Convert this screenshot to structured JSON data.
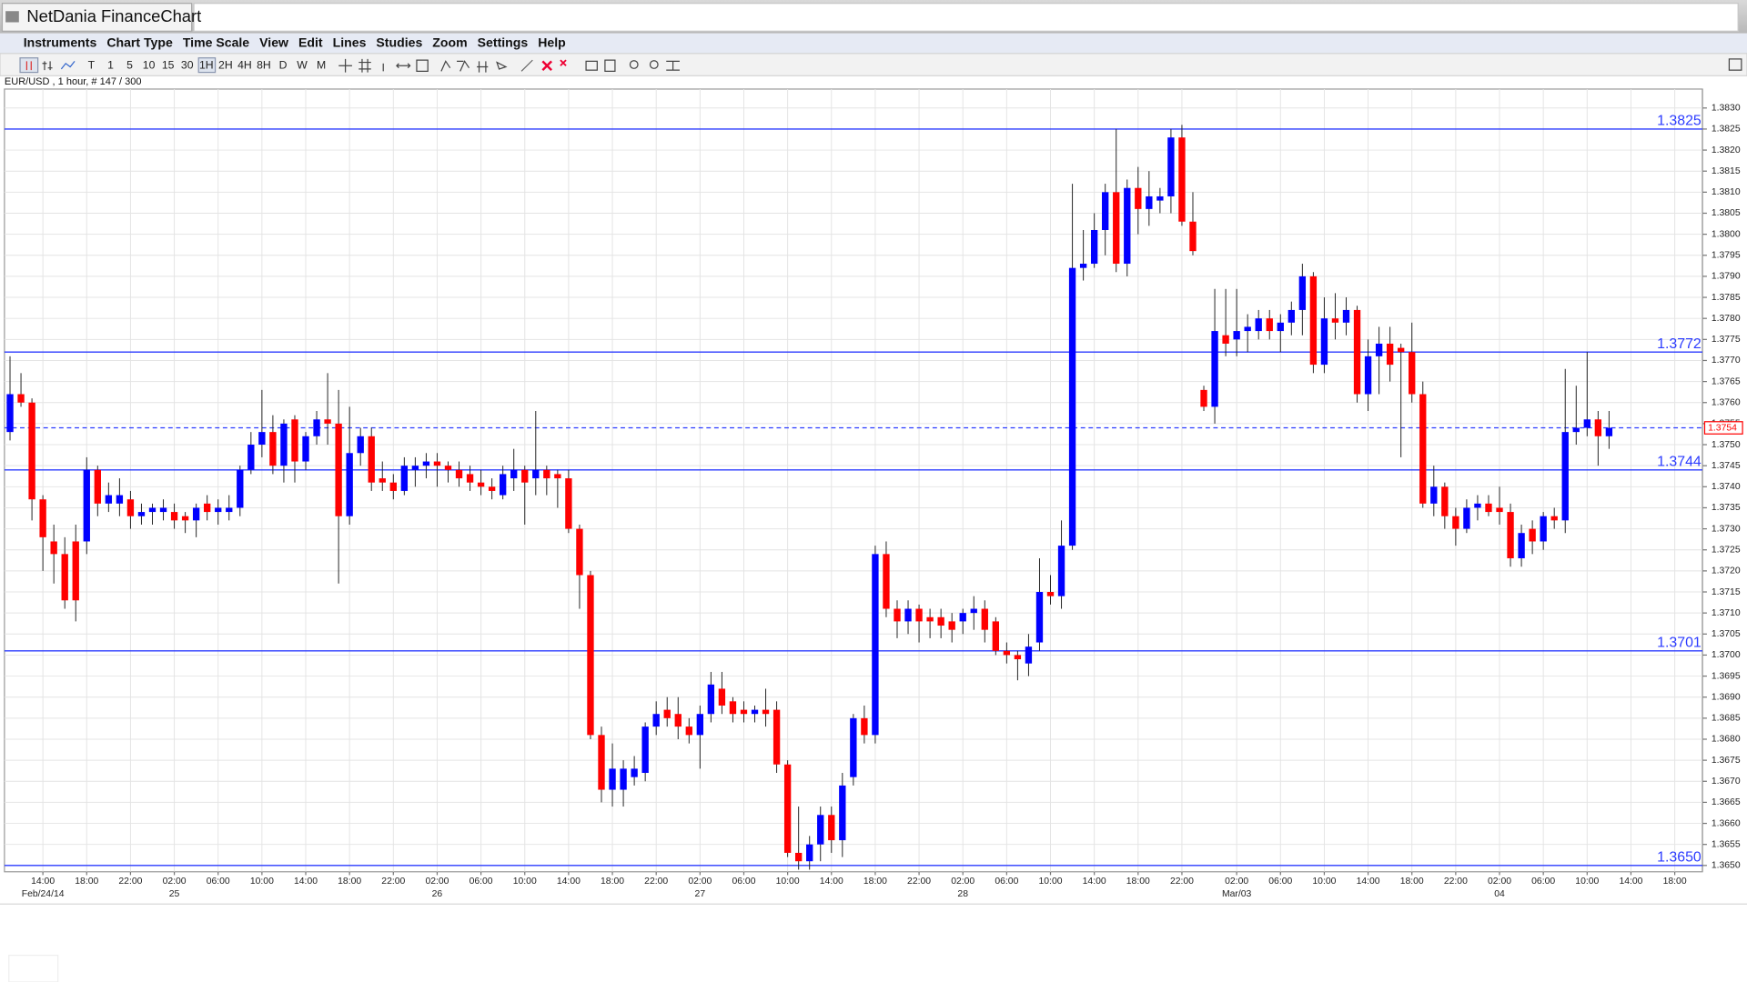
{
  "window": {
    "title": "NetDania FinanceChart",
    "menus": [
      "Instruments",
      "Chart Type",
      "Time Scale",
      "View",
      "Edit",
      "Lines",
      "Studies",
      "Zoom",
      "Settings",
      "Help"
    ],
    "toolbar": [
      "T",
      "1",
      "5",
      "10",
      "15",
      "30",
      "1H",
      "2H",
      "4H",
      "8H",
      "D",
      "W",
      "M"
    ]
  },
  "chart_data": {
    "type": "candlestick",
    "title": "EUR/USD , 1 hour, # 147 / 300",
    "up_color": "#0000ff",
    "down_color": "#ff0000",
    "level_color": "#2b3bff",
    "grid": true,
    "categories": [
      null,
      null,
      null,
      "14:00",
      null,
      null,
      null,
      "18:00",
      null,
      null,
      null,
      "22:00",
      null,
      null,
      null,
      "02:00",
      null,
      null,
      null,
      "06:00",
      null,
      null,
      null,
      "10:00",
      null,
      null,
      null,
      "14:00",
      null,
      null,
      null,
      "18:00",
      null,
      null,
      null,
      "22:00",
      null,
      null,
      null,
      "02:00",
      null,
      null,
      null,
      "06:00",
      null,
      null,
      null,
      "10:00",
      null,
      null,
      null,
      "14:00",
      null,
      null,
      null,
      "18:00",
      null,
      null,
      null,
      "22:00",
      null,
      null,
      null,
      "02:00",
      null,
      null,
      null,
      "06:00",
      null,
      null,
      null,
      "10:00",
      null,
      null,
      null,
      "14:00",
      null,
      null,
      null,
      "18:00",
      null,
      null,
      null,
      "22:00",
      null,
      null,
      null,
      "02:00",
      null,
      null,
      null,
      "06:00",
      null,
      null,
      null,
      "10:00",
      null,
      null,
      null,
      "14:00",
      null,
      null,
      null,
      "18:00",
      null,
      null,
      null,
      "22:00",
      null,
      null,
      null,
      null,
      "02:00",
      null,
      null,
      null,
      "06:00",
      null,
      null,
      null,
      "10:00",
      null,
      null,
      null,
      "14:00",
      null,
      null,
      null,
      "18:00",
      null,
      null,
      null,
      "22:00",
      null,
      null,
      null,
      "02:00",
      null,
      null,
      null,
      "06:00",
      null,
      null,
      null,
      "10:00",
      null,
      null,
      null,
      "14:00",
      null,
      null,
      null,
      "18:00"
    ],
    "date_labels": [
      null,
      null,
      null,
      "Feb/24/14",
      null,
      null,
      null,
      null,
      null,
      null,
      null,
      null,
      null,
      null,
      null,
      "25",
      null,
      null,
      null,
      null,
      null,
      null,
      null,
      null,
      null,
      null,
      null,
      null,
      null,
      null,
      null,
      null,
      null,
      null,
      null,
      null,
      null,
      null,
      null,
      "26",
      null,
      null,
      null,
      null,
      null,
      null,
      null,
      null,
      null,
      null,
      null,
      null,
      null,
      null,
      null,
      null,
      null,
      null,
      null,
      null,
      null,
      null,
      null,
      "27",
      null,
      null,
      null,
      null,
      null,
      null,
      null,
      null,
      null,
      null,
      null,
      null,
      null,
      null,
      null,
      null,
      null,
      null,
      null,
      null,
      null,
      null,
      null,
      "28",
      null,
      null,
      null,
      null,
      null,
      null,
      null,
      null,
      null,
      null,
      null,
      null,
      null,
      null,
      null,
      null,
      null,
      null,
      null,
      null,
      null,
      null,
      null,
      null,
      "Mar/03",
      null,
      null,
      null,
      null,
      null,
      null,
      null,
      null,
      null,
      null,
      null,
      null,
      null,
      null,
      null,
      null,
      null,
      null,
      null,
      null,
      null,
      null,
      null,
      "04",
      null,
      null,
      null,
      null,
      null,
      null,
      null,
      null,
      null,
      null,
      null,
      null,
      null,
      null,
      null,
      null
    ],
    "open": [
      1.3753,
      1.3762,
      1.376,
      1.3737,
      1.3727,
      1.3724,
      1.3727,
      1.3727,
      1.3744,
      1.3736,
      1.3736,
      1.3737,
      1.3733,
      1.3734,
      1.3734,
      1.3734,
      1.3733,
      1.3732,
      1.3736,
      1.3734,
      1.3734,
      1.3735,
      1.3744,
      1.375,
      1.3753,
      1.3745,
      1.3756,
      1.3746,
      1.3752,
      1.3756,
      1.3755,
      1.3733,
      1.3748,
      1.3752,
      1.3742,
      1.3741,
      1.3739,
      1.3744,
      1.3745,
      1.3746,
      1.3745,
      1.3744,
      1.3743,
      1.3741,
      1.374,
      1.3738,
      1.3742,
      1.3744,
      1.3742,
      1.3744,
      1.3743,
      1.3742,
      1.373,
      1.3719,
      1.3681,
      1.3668,
      1.3668,
      1.3671,
      1.3672,
      1.3683,
      1.3687,
      1.3686,
      1.3683,
      1.3681,
      1.3686,
      1.3692,
      1.3689,
      1.3687,
      1.3686,
      1.3687,
      1.3687,
      1.3674,
      1.3653,
      1.3651,
      1.3655,
      1.3662,
      1.3656,
      1.3671,
      1.3685,
      1.3681,
      1.3724,
      1.3711,
      1.3708,
      1.3711,
      1.3709,
      1.3709,
      1.3708,
      1.3708,
      1.371,
      1.3711,
      1.3708,
      1.3701,
      1.37,
      1.3698,
      1.3703,
      1.3715,
      1.3714,
      1.3726,
      1.3792,
      1.3793,
      1.3801,
      1.381,
      1.3793,
      1.3811,
      1.3806,
      1.3808,
      1.3809,
      1.3823,
      1.3803,
      1.3763,
      1.3759,
      1.3776,
      1.3775,
      1.3777,
      1.3777,
      1.378,
      1.3777,
      1.3779,
      1.3782,
      1.379,
      1.3769,
      1.378,
      1.3779,
      1.3782,
      1.3762,
      1.3771,
      1.3774,
      1.3773,
      1.3772,
      1.3762,
      1.3736,
      1.374,
      1.3733,
      1.373,
      1.3735,
      1.3736,
      1.3735,
      1.3734,
      1.3723,
      1.373,
      1.3727,
      1.3733,
      1.3732,
      1.3753,
      1.3754,
      1.3756,
      1.3752,
      null,
      null,
      null,
      null,
      null,
      null
    ],
    "high": [
      1.3771,
      1.3767,
      1.3761,
      1.3738,
      1.3731,
      1.3728,
      1.3731,
      1.3747,
      1.3745,
      1.3741,
      1.3742,
      1.3739,
      1.3736,
      1.3736,
      1.3737,
      1.3736,
      1.3734,
      1.3736,
      1.3738,
      1.3737,
      1.3738,
      1.3745,
      1.3753,
      1.3763,
      1.3757,
      1.3756,
      1.3757,
      1.3753,
      1.3758,
      1.3767,
      1.3763,
      1.3759,
      1.3754,
      1.3754,
      1.3746,
      1.3743,
      1.3747,
      1.3747,
      1.3748,
      1.3748,
      1.3746,
      1.3746,
      1.3745,
      1.3744,
      1.3742,
      1.3745,
      1.3749,
      1.3745,
      1.3758,
      1.3745,
      1.3744,
      1.3744,
      1.3731,
      1.372,
      1.3683,
      1.3679,
      1.3675,
      1.3676,
      1.3684,
      1.3689,
      1.369,
      1.369,
      1.3685,
      1.3688,
      1.3696,
      1.3696,
      1.369,
      1.3689,
      1.3688,
      1.3692,
      1.3689,
      1.3675,
      1.3664,
      1.3657,
      1.3664,
      1.3664,
      1.3672,
      1.3686,
      1.3688,
      1.3726,
      1.3727,
      1.3713,
      1.3713,
      1.3712,
      1.3711,
      1.3711,
      1.371,
      1.3711,
      1.3714,
      1.3713,
      1.3709,
      1.3703,
      1.3701,
      1.3705,
      1.3723,
      1.3719,
      1.3732,
      1.3812,
      1.3801,
      1.3805,
      1.3812,
      1.3825,
      1.3813,
      1.3816,
      1.3815,
      1.3811,
      1.3825,
      1.3826,
      1.381,
      1.3764,
      1.3787,
      1.3787,
      1.3787,
      1.3781,
      1.3782,
      1.3782,
      1.3781,
      1.3784,
      1.3793,
      1.3791,
      1.3785,
      1.3786,
      1.3785,
      1.3783,
      1.3775,
      1.3778,
      1.3778,
      1.3774,
      1.3779,
      1.3765,
      1.3745,
      1.3741,
      1.3735,
      1.3737,
      1.3738,
      1.3738,
      1.374,
      1.3736,
      1.3731,
      1.3732,
      1.3734,
      1.3735,
      1.3768,
      1.3764,
      1.3772,
      1.3758,
      1.3758,
      null,
      null,
      null,
      null,
      null,
      null
    ],
    "low": [
      1.3751,
      1.3759,
      1.3732,
      1.372,
      1.3717,
      1.3711,
      1.3708,
      1.3724,
      1.3733,
      1.3734,
      1.3733,
      1.373,
      1.3731,
      1.3731,
      1.3732,
      1.373,
      1.3729,
      1.3728,
      1.3732,
      1.3731,
      1.3732,
      1.3733,
      1.3743,
      1.3747,
      1.3743,
      1.3741,
      1.3741,
      1.3744,
      1.375,
      1.375,
      1.3717,
      1.3731,
      1.3745,
      1.3739,
      1.3739,
      1.3737,
      1.3738,
      1.374,
      1.3742,
      1.374,
      1.3741,
      1.374,
      1.3739,
      1.3738,
      1.3737,
      1.3737,
      1.3739,
      1.3731,
      1.3738,
      1.3738,
      1.3735,
      1.3729,
      1.3711,
      1.368,
      1.3665,
      1.3664,
      1.3664,
      1.3669,
      1.367,
      1.3681,
      1.3683,
      1.368,
      1.3679,
      1.3673,
      1.3684,
      1.3686,
      1.3684,
      1.3684,
      1.3684,
      1.3683,
      1.3672,
      1.3652,
      1.3649,
      1.3649,
      1.3651,
      1.3653,
      1.3652,
      1.3669,
      1.3679,
      1.3679,
      1.3709,
      1.3704,
      1.3705,
      1.3703,
      1.3704,
      1.3704,
      1.3703,
      1.3705,
      1.3706,
      1.3703,
      1.37,
      1.3698,
      1.3694,
      1.3695,
      1.3701,
      1.3712,
      1.3711,
      1.3725,
      1.3789,
      1.3792,
      1.3795,
      1.3791,
      1.379,
      1.38,
      1.3802,
      1.3805,
      1.3805,
      1.3802,
      1.3795,
      1.3758,
      1.3755,
      1.3771,
      1.3771,
      1.3772,
      1.3775,
      1.3775,
      1.3772,
      1.3776,
      1.3776,
      1.3767,
      1.3767,
      1.3775,
      1.3776,
      1.376,
      1.3758,
      1.3762,
      1.3765,
      1.3747,
      1.376,
      1.3735,
      1.3733,
      1.373,
      1.3726,
      1.3729,
      1.3732,
      1.3733,
      1.3731,
      1.3721,
      1.3721,
      1.3724,
      1.3725,
      1.373,
      1.3729,
      1.375,
      1.3752,
      1.3745,
      1.3749,
      null,
      null,
      null,
      null,
      null,
      null
    ],
    "close": [
      1.3762,
      1.376,
      1.3737,
      1.3728,
      1.3724,
      1.3713,
      1.3713,
      1.3744,
      1.3736,
      1.3738,
      1.3738,
      1.3733,
      1.3734,
      1.3735,
      1.3735,
      1.3732,
      1.3732,
      1.3735,
      1.3734,
      1.3735,
      1.3735,
      1.3744,
      1.375,
      1.3753,
      1.3745,
      1.3755,
      1.3746,
      1.3752,
      1.3756,
      1.3755,
      1.3733,
      1.3748,
      1.3752,
      1.3741,
      1.3741,
      1.3739,
      1.3745,
      1.3745,
      1.3746,
      1.3745,
      1.3744,
      1.3742,
      1.3741,
      1.374,
      1.3739,
      1.3743,
      1.3744,
      1.3741,
      1.3744,
      1.3742,
      1.3742,
      1.373,
      1.3719,
      1.3681,
      1.3668,
      1.3673,
      1.3673,
      1.3673,
      1.3683,
      1.3686,
      1.3685,
      1.3683,
      1.3681,
      1.3686,
      1.3693,
      1.3688,
      1.3686,
      1.3686,
      1.3687,
      1.3686,
      1.3674,
      1.3653,
      1.3651,
      1.3655,
      1.3662,
      1.3656,
      1.3669,
      1.3685,
      1.3681,
      1.3724,
      1.3711,
      1.3708,
      1.3711,
      1.3708,
      1.3708,
      1.3707,
      1.3706,
      1.371,
      1.3711,
      1.3706,
      1.3701,
      1.37,
      1.3699,
      1.3702,
      1.3715,
      1.3714,
      1.3726,
      1.3792,
      1.3793,
      1.3801,
      1.381,
      1.3793,
      1.3811,
      1.3806,
      1.3809,
      1.3809,
      1.3823,
      1.3803,
      1.3796,
      1.3759,
      1.3777,
      1.3774,
      1.3777,
      1.3778,
      1.378,
      1.3777,
      1.3779,
      1.3782,
      1.379,
      1.3769,
      1.378,
      1.3779,
      1.3782,
      1.3762,
      1.3771,
      1.3774,
      1.3769,
      1.3772,
      1.3762,
      1.3736,
      1.374,
      1.3733,
      1.373,
      1.3735,
      1.3736,
      1.3734,
      1.3734,
      1.3723,
      1.3729,
      1.3727,
      1.3733,
      1.3732,
      1.3753,
      1.3754,
      1.3756,
      1.3752,
      1.3754,
      null,
      null,
      null,
      null,
      null,
      null
    ],
    "ylim": [
      1.36485,
      1.38345
    ],
    "yticks": [
      {
        "value": 1.365,
        "label": "1.3650"
      },
      1.3655,
      {
        "value": 1.366,
        "label": "1.3660"
      },
      1.3665,
      {
        "value": 1.367,
        "label": "1.3670"
      },
      1.3675,
      {
        "value": 1.368,
        "label": "1.3680"
      },
      1.3685,
      {
        "value": 1.369,
        "label": "1.3690"
      },
      1.3695,
      {
        "value": 1.37,
        "label": "1.3700"
      },
      1.3705,
      {
        "value": 1.371,
        "label": "1.3710"
      },
      1.3715,
      {
        "value": 1.372,
        "label": "1.3720"
      },
      1.3725,
      {
        "value": 1.373,
        "label": "1.3730"
      },
      1.3735,
      {
        "value": 1.374,
        "label": "1.3740"
      },
      1.3745,
      {
        "value": 1.375,
        "label": "1.3750"
      },
      1.3755,
      {
        "value": 1.376,
        "label": "1.3760"
      },
      1.3765,
      {
        "value": 1.377,
        "label": "1.3770"
      },
      1.3775,
      {
        "value": 1.378,
        "label": "1.3780"
      },
      1.3785,
      {
        "value": 1.379,
        "label": "1.3790"
      },
      1.3795,
      {
        "value": 1.38,
        "label": "1.3800"
      },
      1.3805,
      {
        "value": 1.381,
        "label": "1.3810"
      },
      1.3815,
      {
        "value": 1.382,
        "label": "1.3820"
      },
      1.3825,
      {
        "value": 1.383,
        "label": "1.3830"
      }
    ],
    "levels": [
      1.3825,
      1.3772,
      1.3744,
      1.3701,
      1.365
    ],
    "level_labels": [
      "1.3825",
      "1.3772",
      "1.3744",
      "1.3701",
      "1.3650"
    ],
    "last_price": {
      "value": 1.3754,
      "label": "1.3754"
    }
  }
}
